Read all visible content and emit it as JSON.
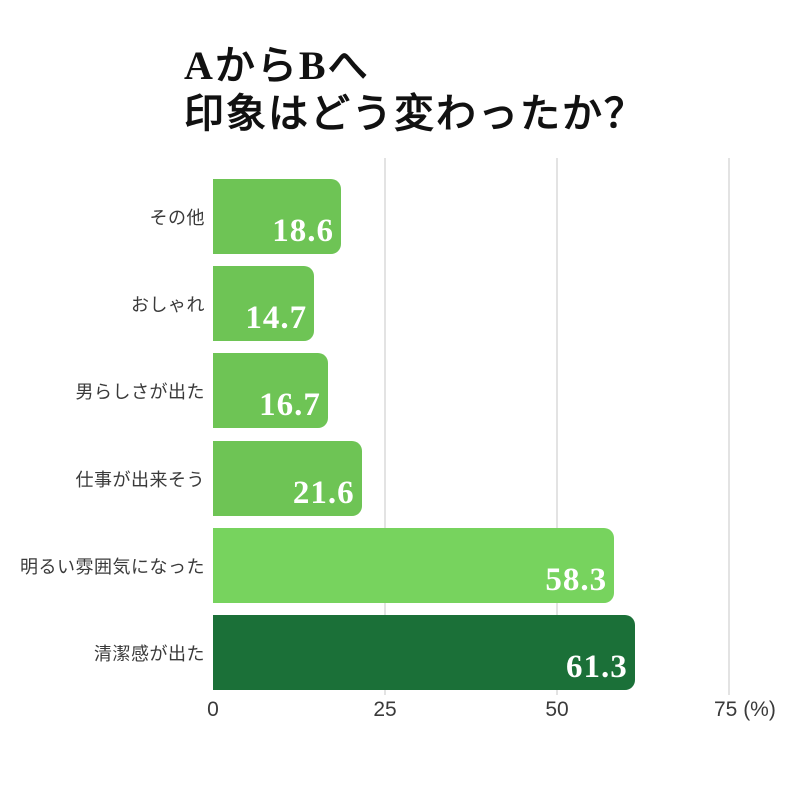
{
  "title": {
    "line1": "AからBへ",
    "line2": "印象はどう変わったか？"
  },
  "chart_data": {
    "type": "bar",
    "orientation": "horizontal",
    "title": "AからBへ 印象はどう変わったか？",
    "categories": [
      "その他",
      "おしゃれ",
      "男らしさが出た",
      "仕事が出来そう",
      "明るい雰囲気になった",
      "清潔感が出た"
    ],
    "values": [
      18.6,
      14.7,
      16.7,
      21.6,
      58.3,
      61.3
    ],
    "value_labels": [
      "18.6",
      "14.7",
      "16.7",
      "21.6",
      "58.3",
      "61.3"
    ],
    "bar_colors": [
      "#6ec455",
      "#6ec455",
      "#6ec455",
      "#6ec455",
      "#77d35e",
      "#1b7038"
    ],
    "value_label_color": "#ffffff",
    "xlim": [
      0,
      75
    ],
    "xticks": [
      0,
      25,
      50,
      75
    ],
    "tick_labels": [
      "0",
      "25",
      "50",
      "75 (%)"
    ],
    "x_unit": "(%)",
    "grid": "vertical-light-gray",
    "legend": "none",
    "background": "#ffffff",
    "gridline_color": "#e3e3e3"
  }
}
